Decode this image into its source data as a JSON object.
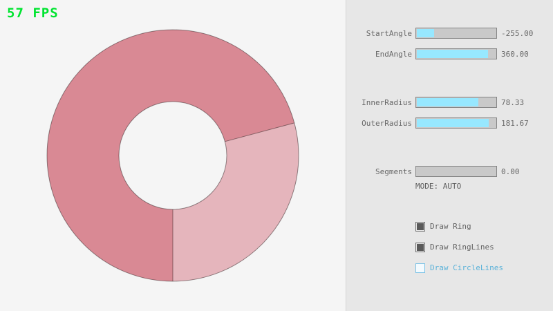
{
  "fps_label": "57 FPS",
  "colors": {
    "fps_green": "#00e430",
    "accent_cyan": "#97e8ff",
    "slider_track_gray": "#c9c9c9",
    "panel_bg": "#e7e7e7",
    "canvas_bg": "#f5f5f5",
    "ring_dark": "#d98994",
    "ring_light": "#e5b5bc",
    "ring_outline": "rgba(0,0,0,0.4)",
    "blue_text": "#5bb2d9"
  },
  "panel": {
    "sliders": [
      {
        "label": "StartAngle",
        "value": "-255.00",
        "fill_percent": 21.7
      },
      {
        "label": "EndAngle",
        "value": "360.00",
        "fill_percent": 90.0
      },
      {
        "label": "InnerRadius",
        "value": "78.33",
        "fill_percent": 78.3
      },
      {
        "label": "OuterRadius",
        "value": "181.67",
        "fill_percent": 90.8
      },
      {
        "label": "Segments",
        "value": "0.00",
        "fill_percent": 0
      }
    ],
    "mode_label": "MODE: AUTO",
    "checkboxes": [
      {
        "label": "Draw Ring",
        "checked": true
      },
      {
        "label": "Draw RingLines",
        "checked": true
      },
      {
        "label": "Draw CircleLines",
        "checked": false
      }
    ]
  }
}
